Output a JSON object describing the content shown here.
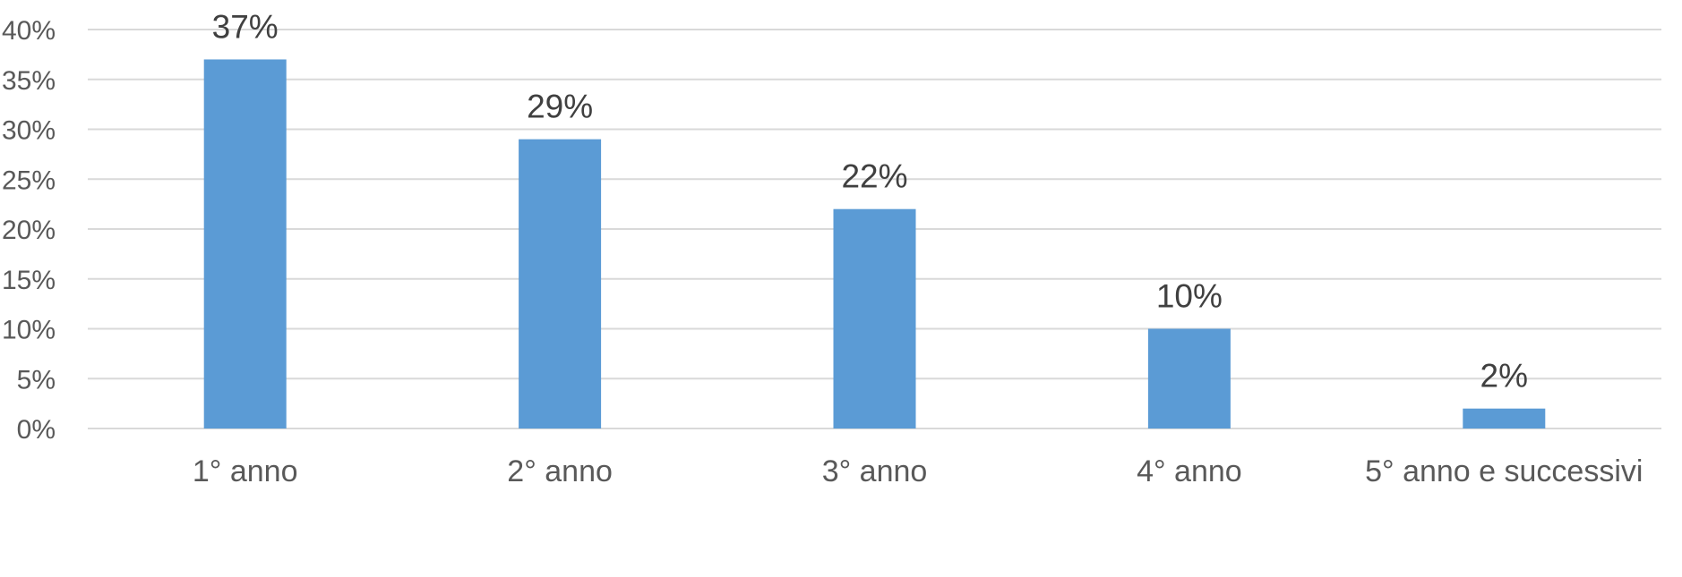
{
  "chart_data": {
    "type": "bar",
    "categories": [
      "1° anno",
      "2° anno",
      "3° anno",
      "4° anno",
      "5° anno e successivi"
    ],
    "values": [
      37,
      29,
      22,
      10,
      2
    ],
    "data_labels": [
      "37%",
      "29%",
      "22%",
      "10%",
      "2%"
    ],
    "ylim": [
      0,
      40
    ],
    "yticks": [
      0,
      5,
      10,
      15,
      20,
      25,
      30,
      35,
      40
    ],
    "ytick_labels": [
      "0%",
      "5%",
      "10%",
      "15%",
      "20%",
      "25%",
      "30%",
      "35%",
      "40%"
    ],
    "title": "",
    "xlabel": "",
    "ylabel": "",
    "grid": true,
    "legend": "none",
    "colors": {
      "bar": "#5b9bd5",
      "grid": "#d9d9d9",
      "text": "#595959"
    }
  }
}
